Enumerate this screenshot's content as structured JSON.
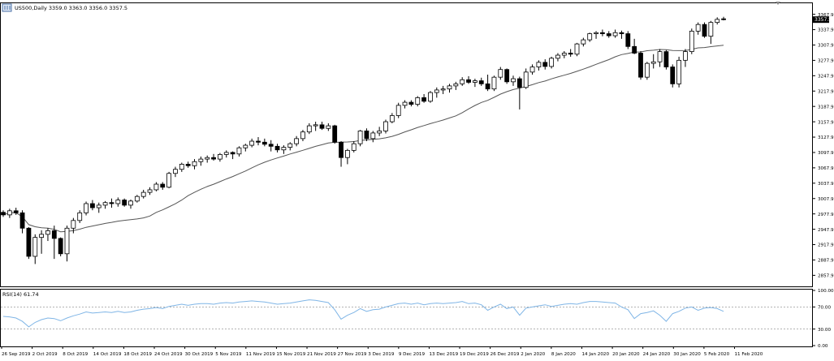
{
  "header": {
    "symbol_line": "US500,Daily  3359.0 3363.0 3356.0 3357.5",
    "price_badge": "3357.5"
  },
  "rsi_panel": {
    "title": "RSI(14) 61.74"
  },
  "colors": {
    "candle_up_fill": "#ffffff",
    "candle_down_fill": "#000000",
    "candle_border": "#000000",
    "ma_line": "#555555",
    "rsi_line": "#7fb5e6",
    "rsi_levels": "#999999",
    "badge_bg": "#000000",
    "badge_text": "#ffffff",
    "grid_border": "#000000"
  },
  "chart_data": [
    {
      "type": "candlestick",
      "title": "US500,Daily",
      "ylim": [
        2837.9,
        3387.9
      ],
      "y_ticks": [
        "3367.9",
        "3337.9",
        "3307.9",
        "3277.9",
        "3247.9",
        "3217.9",
        "3187.9",
        "3157.9",
        "3127.9",
        "3097.9",
        "3067.9",
        "3037.9",
        "3007.9",
        "2977.9",
        "2947.9",
        "2917.9",
        "2887.9",
        "2857.9"
      ],
      "x_ticks": [
        "26 Sep 2019",
        "2 Oct 2019",
        "8 Oct 2019",
        "14 Oct 2019",
        "18 Oct 2019",
        "24 Oct 2019",
        "30 Oct 2019",
        "5 Nov 2019",
        "11 Nov 2019",
        "15 Nov 2019",
        "21 Nov 2019",
        "27 Nov 2019",
        "3 Dec 2019",
        "9 Dec 2019",
        "13 Dec 2019",
        "19 Dec 2019",
        "26 Dec 2019",
        "2 Jan 2020",
        "8 Jan 2020",
        "14 Jan 2020",
        "20 Jan 2020",
        "24 Jan 2020",
        "30 Jan 2020",
        "5 Feb 2020",
        "11 Feb 2020"
      ],
      "candles": [
        [
          2981,
          2985,
          2972,
          2976
        ],
        [
          2976,
          2988,
          2970,
          2984
        ],
        [
          2984,
          2990,
          2976,
          2980
        ],
        [
          2980,
          2985,
          2940,
          2950
        ],
        [
          2950,
          2952,
          2890,
          2895
        ],
        [
          2895,
          2938,
          2880,
          2932
        ],
        [
          2932,
          2946,
          2900,
          2938
        ],
        [
          2938,
          2950,
          2925,
          2945
        ],
        [
          2945,
          2955,
          2890,
          2930
        ],
        [
          2930,
          2932,
          2895,
          2900
        ],
        [
          2900,
          2955,
          2885,
          2950
        ],
        [
          2950,
          2970,
          2940,
          2965
        ],
        [
          2965,
          2985,
          2960,
          2980
        ],
        [
          2980,
          3002,
          2975,
          2998
        ],
        [
          2998,
          3005,
          2985,
          2990
        ],
        [
          2990,
          3000,
          2980,
          2995
        ],
        [
          2995,
          3003,
          2988,
          3000
        ],
        [
          3000,
          3008,
          2990,
          2998
        ],
        [
          2998,
          3010,
          2992,
          3005
        ],
        [
          3005,
          3008,
          2992,
          2995
        ],
        [
          2995,
          3006,
          2988,
          3003
        ],
        [
          3003,
          3015,
          3000,
          3012
        ],
        [
          3012,
          3025,
          3008,
          3020
        ],
        [
          3020,
          3030,
          3015,
          3025
        ],
        [
          3025,
          3040,
          3022,
          3036
        ],
        [
          3036,
          3040,
          3025,
          3030
        ],
        [
          3030,
          3060,
          3028,
          3057
        ],
        [
          3057,
          3070,
          3050,
          3065
        ],
        [
          3065,
          3078,
          3060,
          3075
        ],
        [
          3075,
          3080,
          3068,
          3072
        ],
        [
          3072,
          3085,
          3065,
          3080
        ],
        [
          3080,
          3090,
          3072,
          3085
        ],
        [
          3085,
          3092,
          3078,
          3088
        ],
        [
          3088,
          3095,
          3082,
          3085
        ],
        [
          3085,
          3097,
          3080,
          3094
        ],
        [
          3094,
          3102,
          3088,
          3098
        ],
        [
          3098,
          3100,
          3085,
          3095
        ],
        [
          3095,
          3110,
          3090,
          3107
        ],
        [
          3107,
          3115,
          3100,
          3112
        ],
        [
          3112,
          3125,
          3108,
          3120
        ],
        [
          3120,
          3128,
          3112,
          3118
        ],
        [
          3118,
          3125,
          3110,
          3114
        ],
        [
          3114,
          3122,
          3100,
          3110
        ],
        [
          3110,
          3115,
          3098,
          3103
        ],
        [
          3103,
          3112,
          3095,
          3108
        ],
        [
          3108,
          3118,
          3102,
          3115
        ],
        [
          3115,
          3130,
          3110,
          3125
        ],
        [
          3125,
          3142,
          3120,
          3138
        ],
        [
          3138,
          3155,
          3134,
          3150
        ],
        [
          3150,
          3158,
          3140,
          3152
        ],
        [
          3152,
          3158,
          3142,
          3145
        ],
        [
          3145,
          3155,
          3140,
          3150
        ],
        [
          3150,
          3152,
          3115,
          3118
        ],
        [
          3118,
          3120,
          3070,
          3088
        ],
        [
          3088,
          3105,
          3075,
          3102
        ],
        [
          3102,
          3120,
          3098,
          3115
        ],
        [
          3115,
          3142,
          3110,
          3140
        ],
        [
          3140,
          3145,
          3120,
          3125
        ],
        [
          3125,
          3140,
          3118,
          3136
        ],
        [
          3136,
          3148,
          3130,
          3140
        ],
        [
          3140,
          3162,
          3135,
          3158
        ],
        [
          3158,
          3175,
          3155,
          3170
        ],
        [
          3170,
          3195,
          3165,
          3190
        ],
        [
          3190,
          3200,
          3184,
          3196
        ],
        [
          3196,
          3200,
          3188,
          3192
        ],
        [
          3192,
          3208,
          3188,
          3205
        ],
        [
          3205,
          3212,
          3195,
          3198
        ],
        [
          3198,
          3218,
          3195,
          3215
        ],
        [
          3215,
          3225,
          3205,
          3220
        ],
        [
          3220,
          3228,
          3212,
          3222
        ],
        [
          3222,
          3232,
          3215,
          3228
        ],
        [
          3228,
          3236,
          3220,
          3232
        ],
        [
          3232,
          3245,
          3228,
          3240
        ],
        [
          3240,
          3247,
          3232,
          3235
        ],
        [
          3235,
          3242,
          3226,
          3238
        ],
        [
          3238,
          3244,
          3228,
          3232
        ],
        [
          3232,
          3250,
          3218,
          3222
        ],
        [
          3222,
          3248,
          3218,
          3245
        ],
        [
          3245,
          3265,
          3240,
          3260
        ],
        [
          3260,
          3262,
          3232,
          3236
        ],
        [
          3236,
          3248,
          3228,
          3242
        ],
        [
          3242,
          3246,
          3182,
          3225
        ],
        [
          3225,
          3262,
          3222,
          3255
        ],
        [
          3255,
          3270,
          3250,
          3265
        ],
        [
          3265,
          3278,
          3258,
          3274
        ],
        [
          3274,
          3280,
          3260,
          3266
        ],
        [
          3266,
          3285,
          3262,
          3282
        ],
        [
          3282,
          3292,
          3276,
          3288
        ],
        [
          3288,
          3296,
          3282,
          3292
        ],
        [
          3292,
          3300,
          3285,
          3290
        ],
        [
          3290,
          3312,
          3286,
          3310
        ],
        [
          3310,
          3322,
          3305,
          3318
        ],
        [
          3318,
          3332,
          3314,
          3330
        ],
        [
          3330,
          3335,
          3320,
          3332
        ],
        [
          3332,
          3338,
          3325,
          3330
        ],
        [
          3330,
          3335,
          3322,
          3326
        ],
        [
          3326,
          3338,
          3322,
          3332
        ],
        [
          3332,
          3336,
          3320,
          3330
        ],
        [
          3330,
          3335,
          3300,
          3305
        ],
        [
          3305,
          3320,
          3290,
          3292
        ],
        [
          3292,
          3296,
          3240,
          3245
        ],
        [
          3245,
          3275,
          3240,
          3272
        ],
        [
          3272,
          3290,
          3262,
          3275
        ],
        [
          3275,
          3300,
          3265,
          3295
        ],
        [
          3295,
          3298,
          3260,
          3265
        ],
        [
          3265,
          3270,
          3225,
          3232
        ],
        [
          3232,
          3285,
          3225,
          3278
        ],
        [
          3278,
          3300,
          3265,
          3295
        ],
        [
          3295,
          3340,
          3290,
          3335
        ],
        [
          3335,
          3352,
          3328,
          3348
        ],
        [
          3348,
          3352,
          3322,
          3325
        ],
        [
          3325,
          3355,
          3310,
          3352
        ],
        [
          3352,
          3362,
          3348,
          3358
        ],
        [
          3359,
          3363,
          3356,
          3357.5
        ]
      ],
      "ma_period": 20
    },
    {
      "type": "line",
      "title": "RSI(14) 61.74",
      "ylim": [
        0,
        100
      ],
      "y_ticks": [
        "100.00",
        "70.00",
        "30.00",
        "0.00"
      ],
      "levels": [
        70,
        30
      ],
      "values": [
        53,
        52,
        50,
        44,
        34,
        42,
        47,
        50,
        49,
        45,
        50,
        54,
        57,
        61,
        59,
        60,
        61,
        60,
        62,
        60,
        61,
        64,
        66,
        67,
        69,
        67,
        71,
        73,
        75,
        73,
        75,
        76,
        76,
        75,
        77,
        78,
        77,
        79,
        80,
        81,
        80,
        79,
        77,
        75,
        76,
        77,
        79,
        81,
        83,
        82,
        80,
        78,
        65,
        48,
        55,
        60,
        67,
        62,
        65,
        66,
        70,
        73,
        76,
        77,
        75,
        77,
        74,
        76,
        77,
        76,
        77,
        78,
        80,
        76,
        77,
        74,
        64,
        70,
        75,
        67,
        70,
        55,
        68,
        70,
        72,
        74,
        71,
        73,
        75,
        76,
        75,
        78,
        80,
        80,
        79,
        78,
        77,
        70,
        65,
        49,
        58,
        60,
        63,
        55,
        44,
        58,
        62,
        68,
        70,
        64,
        68,
        69,
        67,
        62
      ]
    }
  ]
}
